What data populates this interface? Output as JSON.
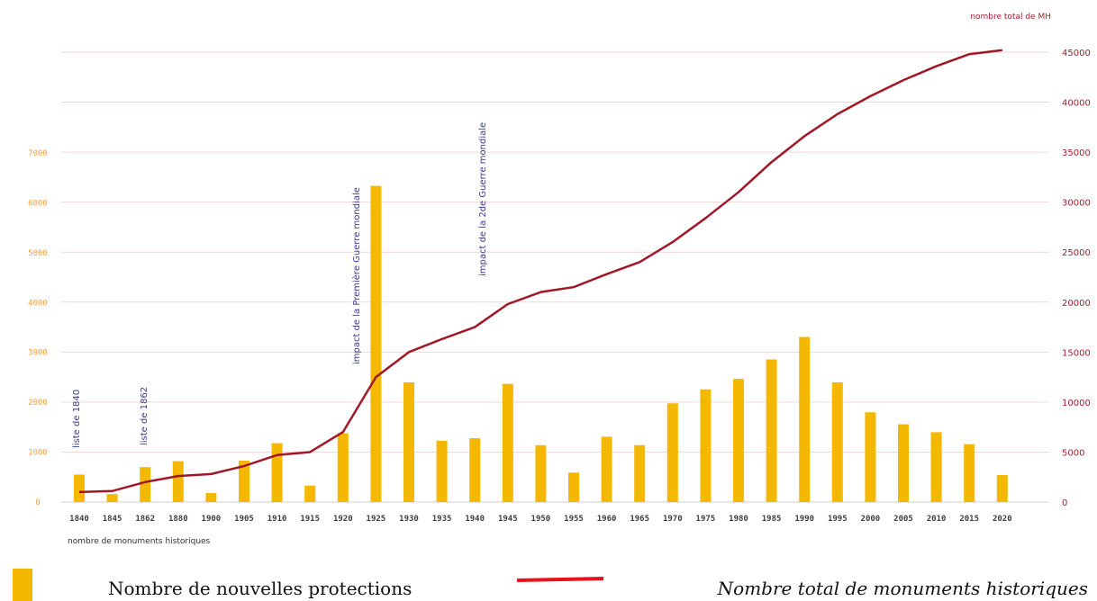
{
  "chart_data": {
    "type": "bar+line",
    "categories": [
      "1840",
      "1845",
      "1862",
      "1880",
      "1900",
      "1905",
      "1910",
      "1915",
      "1920",
      "1925",
      "1930",
      "1935",
      "1940",
      "1945",
      "1950",
      "1955",
      "1960",
      "1965",
      "1970",
      "1975",
      "1980",
      "1985",
      "1990",
      "1995",
      "2000",
      "2005",
      "2010",
      "2015",
      "2020"
    ],
    "series": [
      {
        "name": "Nombre de nouvelles protections",
        "type": "bar",
        "axis": "left",
        "color": "#f5b800",
        "values": [
          550,
          160,
          700,
          820,
          180,
          830,
          1180,
          330,
          1380,
          6340,
          2400,
          1230,
          1280,
          2370,
          1140,
          590,
          1310,
          1140,
          1980,
          2260,
          2470,
          2860,
          3310,
          2400,
          1800,
          1560,
          1400,
          1160,
          540
        ]
      },
      {
        "name": "Nombre total de monuments historiques",
        "type": "line",
        "axis": "right",
        "color": "#a01828",
        "values": [
          1000,
          1100,
          2000,
          2600,
          2800,
          3600,
          4700,
          5000,
          7000,
          12500,
          15000,
          16300,
          17500,
          19800,
          21000,
          21500,
          22800,
          24000,
          26000,
          28400,
          31000,
          34000,
          36600,
          38800,
          40600,
          42200,
          43600,
          44800,
          45200
        ]
      }
    ],
    "y_left": {
      "ticks": [
        "0",
        "1000",
        "2000",
        "3000",
        "4000",
        "5000",
        "6000",
        "7000"
      ],
      "ylim": [
        0,
        7000
      ]
    },
    "y_right": {
      "ticks": [
        "0",
        "5000",
        "10000",
        "15000",
        "20000",
        "25000",
        "30000",
        "35000",
        "40000",
        "45000"
      ],
      "ylim": [
        0,
        45000
      ],
      "title": "nombre total de MH"
    },
    "xlabel": "nombre de monuments historiques",
    "annotations": [
      {
        "text": "liste de 1840",
        "category": "1840"
      },
      {
        "text": "liste de 1862",
        "category": "1862"
      },
      {
        "text": "impact de la Première Guerre mondiale",
        "category": "1920"
      },
      {
        "text": "impact de la 2de Guerre mondiale",
        "category": "1940"
      }
    ],
    "grid": true,
    "legend_position": "bottom"
  },
  "legend": {
    "bars_label": "Nombre de nouvelles protections",
    "line_label": "Nombre total de monuments historiques"
  }
}
